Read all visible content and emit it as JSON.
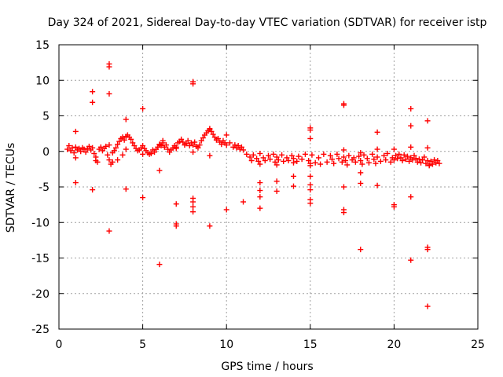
{
  "chart_data": {
    "type": "scatter",
    "title": "Day 324 of 2021, Sidereal Day-to-day VTEC variation (SDTVAR) for receiver istp",
    "xlabel": "GPS time / hours",
    "ylabel": "SDTVAR / TECUs",
    "xlim": [
      0,
      25
    ],
    "ylim": [
      -25,
      15
    ],
    "xticks": [
      0,
      5,
      10,
      15,
      20,
      25
    ],
    "yticks": [
      -25,
      -20,
      -15,
      -10,
      -5,
      0,
      5,
      10,
      15
    ],
    "grid": true,
    "marker": "+",
    "color": "#ff0000",
    "series": [
      {
        "name": "SDTVAR",
        "points": [
          [
            0.5,
            0.3
          ],
          [
            0.6,
            0.8
          ],
          [
            0.7,
            0.1
          ],
          [
            0.8,
            0.5
          ],
          [
            0.9,
            -0.2
          ],
          [
            1.0,
            0.6
          ],
          [
            1.1,
            0.2
          ],
          [
            1.2,
            0.4
          ],
          [
            1.3,
            0.0
          ],
          [
            1.4,
            0.5
          ],
          [
            1.5,
            0.3
          ],
          [
            1.6,
            -0.1
          ],
          [
            1.7,
            0.4
          ],
          [
            1.8,
            0.7
          ],
          [
            1.9,
            0.2
          ],
          [
            2.0,
            0.5
          ],
          [
            2.1,
            -0.3
          ],
          [
            2.2,
            -0.8
          ],
          [
            2.3,
            -1.5
          ],
          [
            2.4,
            0.3
          ],
          [
            2.5,
            0.6
          ],
          [
            2.6,
            0.1
          ],
          [
            2.7,
            0.4
          ],
          [
            2.8,
            0.7
          ],
          [
            2.9,
            -0.5
          ],
          [
            3.0,
            -1.2
          ],
          [
            3.1,
            -1.8
          ],
          [
            3.2,
            -0.2
          ],
          [
            3.3,
            0.1
          ],
          [
            3.4,
            0.5
          ],
          [
            3.5,
            1.0
          ],
          [
            3.6,
            1.4
          ],
          [
            3.7,
            1.8
          ],
          [
            3.8,
            2.0
          ],
          [
            3.9,
            1.6
          ],
          [
            4.0,
            2.1
          ],
          [
            4.1,
            2.3
          ],
          [
            4.2,
            2.0
          ],
          [
            4.3,
            1.7
          ],
          [
            4.4,
            1.2
          ],
          [
            4.5,
            0.8
          ],
          [
            4.6,
            0.4
          ],
          [
            4.7,
            0.1
          ],
          [
            4.8,
            0.2
          ],
          [
            4.9,
            0.5
          ],
          [
            5.0,
            0.8
          ],
          [
            5.1,
            0.4
          ],
          [
            5.2,
            0.1
          ],
          [
            5.3,
            -0.2
          ],
          [
            5.4,
            -0.4
          ],
          [
            5.5,
            -0.3
          ],
          [
            5.6,
            0.2
          ],
          [
            5.7,
            -0.1
          ],
          [
            5.8,
            0.3
          ],
          [
            5.9,
            0.6
          ],
          [
            6.0,
            1.0
          ],
          [
            6.1,
            0.8
          ],
          [
            6.2,
            1.2
          ],
          [
            6.3,
            0.6
          ],
          [
            6.4,
            0.9
          ],
          [
            6.5,
            0.3
          ],
          [
            6.6,
            -0.1
          ],
          [
            6.7,
            0.2
          ],
          [
            6.8,
            0.5
          ],
          [
            6.9,
            0.8
          ],
          [
            7.0,
            0.6
          ],
          [
            7.1,
            1.2
          ],
          [
            7.2,
            1.4
          ],
          [
            7.3,
            1.7
          ],
          [
            7.4,
            1.3
          ],
          [
            7.5,
            0.9
          ],
          [
            7.6,
            1.1
          ],
          [
            7.7,
            1.5
          ],
          [
            7.8,
            0.8
          ],
          [
            7.9,
            1.2
          ],
          [
            8.0,
            0.9
          ],
          [
            8.1,
            1.3
          ],
          [
            8.2,
            0.7
          ],
          [
            8.3,
            0.5
          ],
          [
            8.4,
            0.9
          ],
          [
            8.5,
            1.5
          ],
          [
            8.6,
            1.9
          ],
          [
            8.7,
            2.3
          ],
          [
            8.8,
            2.6
          ],
          [
            8.9,
            2.9
          ],
          [
            9.0,
            3.2
          ],
          [
            9.1,
            2.8
          ],
          [
            9.2,
            2.4
          ],
          [
            9.3,
            2.0
          ],
          [
            9.4,
            1.6
          ],
          [
            9.5,
            1.8
          ],
          [
            9.6,
            1.3
          ],
          [
            9.7,
            1.0
          ],
          [
            9.8,
            1.5
          ],
          [
            9.9,
            1.2
          ],
          [
            10.0,
            0.9
          ],
          [
            10.2,
            1.2
          ],
          [
            10.4,
            0.6
          ],
          [
            10.5,
            0.9
          ],
          [
            10.6,
            0.5
          ],
          [
            10.7,
            0.8
          ],
          [
            10.8,
            0.3
          ],
          [
            10.9,
            0.6
          ],
          [
            11.0,
            0.2
          ],
          [
            11.2,
            -0.4
          ],
          [
            11.4,
            -0.8
          ],
          [
            11.5,
            -1.3
          ],
          [
            11.6,
            -0.5
          ],
          [
            11.8,
            -1.0
          ],
          [
            11.9,
            -1.4
          ],
          [
            12.0,
            -0.3
          ],
          [
            12.2,
            -0.9
          ],
          [
            12.3,
            -1.3
          ],
          [
            12.5,
            -0.6
          ],
          [
            12.6,
            -1.1
          ],
          [
            12.8,
            -0.4
          ],
          [
            12.9,
            -1.5
          ],
          [
            13.0,
            -0.8
          ],
          [
            13.1,
            -1.2
          ],
          [
            13.3,
            -0.5
          ],
          [
            13.4,
            -1.4
          ],
          [
            13.6,
            -0.9
          ],
          [
            13.7,
            -1.3
          ],
          [
            13.9,
            -0.6
          ],
          [
            14.0,
            -1.0
          ],
          [
            14.2,
            -1.4
          ],
          [
            14.3,
            -0.7
          ],
          [
            14.5,
            -1.1
          ],
          [
            14.7,
            -0.4
          ],
          [
            14.9,
            -1.3
          ],
          [
            15.0,
            -1.7
          ],
          [
            15.1,
            -0.5
          ],
          [
            15.3,
            -1.6
          ],
          [
            15.5,
            -0.9
          ],
          [
            15.6,
            -1.8
          ],
          [
            15.8,
            -0.4
          ],
          [
            16.2,
            -0.6
          ],
          [
            16.3,
            -1.1
          ],
          [
            16.4,
            -1.7
          ],
          [
            16.6,
            -0.4
          ],
          [
            16.7,
            -1.0
          ],
          [
            16.9,
            -1.5
          ],
          [
            17.0,
            -0.8
          ],
          [
            17.1,
            -1.3
          ],
          [
            17.2,
            -1.9
          ],
          [
            17.3,
            -0.6
          ],
          [
            17.5,
            -1.2
          ],
          [
            17.6,
            -0.9
          ],
          [
            17.7,
            -1.5
          ],
          [
            17.9,
            -0.7
          ],
          [
            18.0,
            -1.3
          ],
          [
            18.1,
            -1.8
          ],
          [
            18.2,
            -0.5
          ],
          [
            18.4,
            -1.0
          ],
          [
            18.5,
            -1.6
          ],
          [
            18.7,
            -0.4
          ],
          [
            18.8,
            -1.1
          ],
          [
            18.9,
            -1.7
          ],
          [
            19.0,
            -0.8
          ],
          [
            19.2,
            -1.4
          ],
          [
            19.4,
            -0.6
          ],
          [
            19.5,
            -1.2
          ],
          [
            19.6,
            -0.3
          ],
          [
            19.8,
            -1.5
          ],
          [
            19.9,
            -0.9
          ],
          [
            20.0,
            -1.2
          ],
          [
            20.1,
            -0.6
          ],
          [
            20.2,
            -1.0
          ],
          [
            20.3,
            -0.4
          ],
          [
            20.4,
            -0.9
          ],
          [
            20.5,
            -1.3
          ],
          [
            20.6,
            -0.5
          ],
          [
            20.7,
            -1.1
          ],
          [
            20.8,
            -0.7
          ],
          [
            20.9,
            -1.4
          ],
          [
            21.0,
            -0.9
          ],
          [
            21.1,
            -1.2
          ],
          [
            21.2,
            -0.6
          ],
          [
            21.3,
            -1.0
          ],
          [
            21.4,
            -1.5
          ],
          [
            21.5,
            -1.1
          ],
          [
            21.6,
            -1.6
          ],
          [
            21.7,
            -1.2
          ],
          [
            21.8,
            -0.8
          ],
          [
            21.9,
            -1.7
          ],
          [
            22.0,
            -1.3
          ],
          [
            22.1,
            -1.9
          ],
          [
            22.2,
            -1.4
          ],
          [
            22.3,
            -1.8
          ],
          [
            22.4,
            -1.2
          ],
          [
            22.5,
            -1.6
          ],
          [
            22.6,
            -1.3
          ],
          [
            22.7,
            -1.7
          ],
          [
            1.0,
            2.8
          ],
          [
            1.0,
            -4.4
          ],
          [
            1.0,
            -0.9
          ],
          [
            2.0,
            8.4
          ],
          [
            2.0,
            6.9
          ],
          [
            2.0,
            -5.4
          ],
          [
            2.2,
            -1.3
          ],
          [
            3.0,
            12.3
          ],
          [
            3.0,
            11.9
          ],
          [
            3.0,
            8.1
          ],
          [
            3.0,
            -11.2
          ],
          [
            3.0,
            0.9
          ],
          [
            3.2,
            -1.5
          ],
          [
            3.5,
            -1.2
          ],
          [
            3.8,
            -0.5
          ],
          [
            4.0,
            4.5
          ],
          [
            4.0,
            -5.3
          ],
          [
            4.0,
            0.3
          ],
          [
            5.0,
            6.0
          ],
          [
            5.0,
            -6.5
          ],
          [
            5.0,
            -0.4
          ],
          [
            6.0,
            -15.9
          ],
          [
            6.0,
            -2.7
          ],
          [
            6.0,
            0.9
          ],
          [
            6.2,
            1.5
          ],
          [
            7.0,
            -7.4
          ],
          [
            7.0,
            -10.2
          ],
          [
            7.0,
            -10.5
          ],
          [
            7.0,
            0.4
          ],
          [
            8.0,
            9.8
          ],
          [
            8.0,
            9.5
          ],
          [
            8.0,
            -6.6
          ],
          [
            8.0,
            -7.1
          ],
          [
            8.0,
            -7.8
          ],
          [
            8.0,
            -8.5
          ],
          [
            8.0,
            -0.1
          ],
          [
            9.0,
            -10.5
          ],
          [
            9.0,
            -0.6
          ],
          [
            9.0,
            3.1
          ],
          [
            10.0,
            2.3
          ],
          [
            10.0,
            -8.2
          ],
          [
            11.0,
            -7.1
          ],
          [
            12.0,
            -4.4
          ],
          [
            12.0,
            -5.5
          ],
          [
            12.0,
            -6.4
          ],
          [
            12.0,
            -8.0
          ],
          [
            12.0,
            -1.8
          ],
          [
            13.0,
            -4.2
          ],
          [
            13.0,
            -5.6
          ],
          [
            13.0,
            -1.9
          ],
          [
            14.0,
            -3.5
          ],
          [
            14.0,
            -4.9
          ],
          [
            14.0,
            -1.6
          ],
          [
            15.0,
            3.3
          ],
          [
            15.0,
            3.0
          ],
          [
            15.0,
            1.8
          ],
          [
            15.0,
            -3.5
          ],
          [
            15.0,
            -4.7
          ],
          [
            15.0,
            -5.4
          ],
          [
            15.0,
            -6.8
          ],
          [
            15.0,
            -7.3
          ],
          [
            15.0,
            -2.0
          ],
          [
            16.0,
            -1.5
          ],
          [
            17.0,
            6.7
          ],
          [
            17.0,
            6.5
          ],
          [
            17.0,
            -5.0
          ],
          [
            17.0,
            -8.6
          ],
          [
            17.0,
            -8.2
          ],
          [
            17.0,
            0.2
          ],
          [
            18.0,
            -3.0
          ],
          [
            18.0,
            -4.5
          ],
          [
            18.0,
            -13.8
          ],
          [
            18.0,
            -0.2
          ],
          [
            19.0,
            2.7
          ],
          [
            19.0,
            -4.8
          ],
          [
            19.0,
            0.3
          ],
          [
            20.0,
            -7.5
          ],
          [
            20.0,
            -7.8
          ],
          [
            20.0,
            0.3
          ],
          [
            21.0,
            6.0
          ],
          [
            21.0,
            3.6
          ],
          [
            21.0,
            -6.4
          ],
          [
            21.0,
            -15.3
          ],
          [
            21.0,
            0.6
          ],
          [
            22.0,
            4.3
          ],
          [
            22.0,
            -13.5
          ],
          [
            22.0,
            -13.8
          ],
          [
            22.0,
            -21.8
          ],
          [
            22.0,
            0.5
          ],
          [
            22.1,
            -2.0
          ]
        ]
      }
    ]
  }
}
